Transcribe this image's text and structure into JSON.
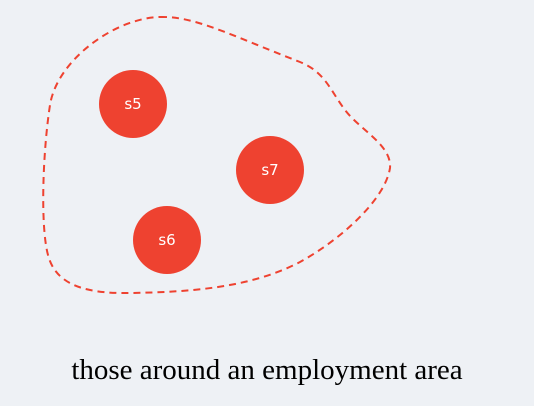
{
  "colors": {
    "background": "#eef1f5",
    "node_fill": "#ee4230",
    "boundary_stroke": "#ee4230",
    "label_text": "#ffffff",
    "caption_text": "#000000"
  },
  "diagram": {
    "boundary": {
      "style": "dashed"
    },
    "nodes": [
      {
        "id": "s5",
        "label": "s5"
      },
      {
        "id": "s7",
        "label": "s7"
      },
      {
        "id": "s6",
        "label": "s6"
      }
    ]
  },
  "caption": "those around an employment area"
}
